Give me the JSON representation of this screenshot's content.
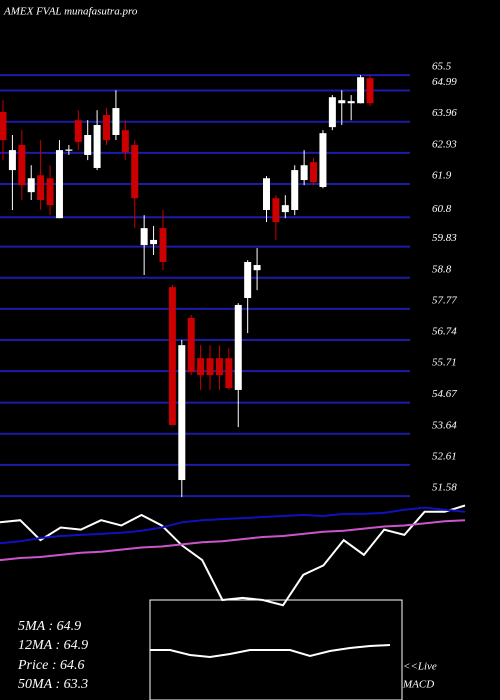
{
  "chart_data": [
    {
      "type": "candlestick",
      "title": "AMEX  FVAL munafasutra.pro",
      "ylim": [
        51.45,
        66.0
      ],
      "yticks": [
        65.5,
        64.99,
        63.96,
        62.93,
        61.9,
        60.8,
        59.83,
        58.8,
        57.77,
        56.74,
        55.71,
        54.67,
        53.64,
        52.61,
        51.58
      ],
      "grid": true,
      "grid_color": "#1c1ca8",
      "color_up": "#ffffff",
      "color_down": "#cc0000",
      "open": [
        64.28,
        62.36,
        63.19,
        61.63,
        62.19,
        62.09,
        60.77,
        63.0,
        64.01,
        62.86,
        62.43,
        64.18,
        63.52,
        63.68,
        63.19,
        59.88,
        59.91,
        60.44,
        58.49,
        52.11,
        57.47,
        56.14,
        56.14,
        56.14,
        56.14,
        55.09,
        58.13,
        59.05,
        61.04,
        61.43,
        60.97,
        61.04,
        62.03,
        62.62,
        61.8,
        63.78,
        64.57,
        64.57,
        64.57,
        65.4
      ],
      "high": [
        64.67,
        63.52,
        63.68,
        62.52,
        63.35,
        62.52,
        63.35,
        63.19,
        64.34,
        64.01,
        64.34,
        64.41,
        65.0,
        64.01,
        63.35,
        60.87,
        60.51,
        61.04,
        58.56,
        56.74,
        57.57,
        56.57,
        56.57,
        56.57,
        56.47,
        57.96,
        59.38,
        59.78,
        62.16,
        61.53,
        61.53,
        62.52,
        63.02,
        62.76,
        63.68,
        64.84,
        65.0,
        64.84,
        65.5,
        65.5
      ],
      "low": [
        62.69,
        61.04,
        61.37,
        61.37,
        61.04,
        60.87,
        60.77,
        62.86,
        63.02,
        62.69,
        62.36,
        63.19,
        63.35,
        62.69,
        60.44,
        58.89,
        59.55,
        59.05,
        53.93,
        51.55,
        55.58,
        55.09,
        55.09,
        55.09,
        55.09,
        53.86,
        56.97,
        58.39,
        60.64,
        60.05,
        60.77,
        60.87,
        61.86,
        61.86,
        61.76,
        63.68,
        63.85,
        64.01,
        64.57,
        64.48
      ],
      "close": [
        63.35,
        63.02,
        61.86,
        62.09,
        61.37,
        61.2,
        63.02,
        63.04,
        63.29,
        63.52,
        63.85,
        63.35,
        64.41,
        62.95,
        61.43,
        60.44,
        60.05,
        59.32,
        53.93,
        56.57,
        55.68,
        55.58,
        55.58,
        55.58,
        55.15,
        57.9,
        59.32,
        59.22,
        62.09,
        60.64,
        61.2,
        62.36,
        62.52,
        61.96,
        63.58,
        64.77,
        64.67,
        64.64,
        65.43,
        64.57
      ]
    },
    {
      "type": "line",
      "ylim": [
        0,
        100
      ],
      "series": [
        {
          "color": "#ffffff",
          "values": [
            74,
            76,
            57,
            69,
            67,
            76,
            71,
            81,
            71,
            52,
            38,
            0,
            2,
            0,
            -5,
            24,
            33,
            57,
            43,
            67,
            62,
            84,
            84,
            90
          ]
        },
        {
          "color": "#1010c0",
          "values": [
            54,
            56,
            59,
            61,
            62,
            63,
            64,
            66,
            69,
            74,
            76,
            77,
            78,
            79,
            80,
            81,
            80,
            82,
            82,
            83,
            86,
            88,
            86,
            84
          ]
        },
        {
          "color": "#cc55cc",
          "values": [
            38,
            40,
            41,
            43,
            45,
            46,
            48,
            50,
            51,
            53,
            55,
            56,
            58,
            60,
            61,
            63,
            65,
            66,
            68,
            70,
            71,
            73,
            75,
            76
          ]
        }
      ]
    },
    {
      "type": "line",
      "ylim": [
        0,
        100
      ],
      "series": [
        {
          "color": "#ffffff",
          "values": [
            50,
            50,
            45,
            43,
            46,
            50,
            50,
            50,
            44,
            49,
            52,
            54,
            55
          ]
        }
      ]
    }
  ],
  "indicators": [
    "5MA : 64.9",
    "12MA : 64.9",
    "Price  : 64.6",
    "50MA : 63.3"
  ],
  "live_label": "<<Live",
  "macd_label": "MACD"
}
